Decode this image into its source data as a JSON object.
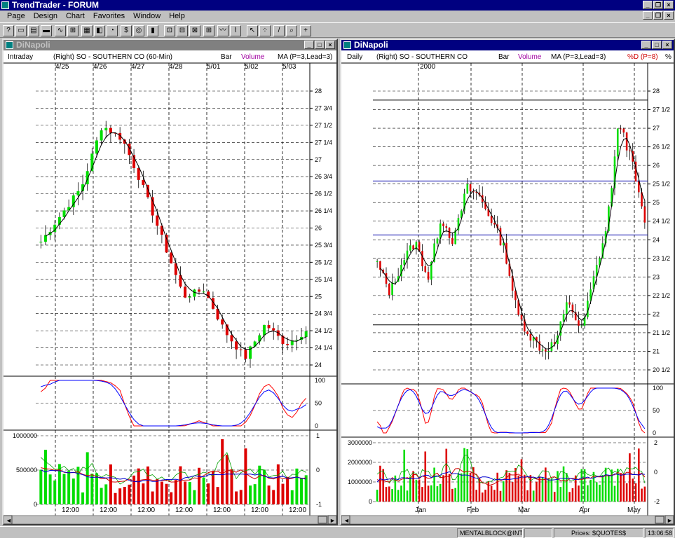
{
  "app": {
    "title": "TrendTrader - FORUM"
  },
  "menu": [
    "Page",
    "Design",
    "Chart",
    "Favorites",
    "Window",
    "Help"
  ],
  "toolbar_icons": [
    "help-icon",
    "page-icon",
    "chart-icon",
    "bar-icon",
    "wave-icon",
    "grid-icon",
    "table-icon",
    "palette-icon",
    "pie-icon",
    "dollar-icon",
    "target-icon",
    "indicator-icon",
    "layout-a-icon",
    "layout-b-icon",
    "layout-c-icon",
    "layout-d-icon",
    "oscillator-icon",
    "scope-icon",
    "pointer-icon",
    "select-icon",
    "pencil-icon",
    "zoom-icon",
    "crosshair-icon"
  ],
  "colors": {
    "up": "#00dd00",
    "down": "#dd0000",
    "ma": "#000000",
    "fast": "#0000ff",
    "slow": "#ff0000",
    "level": "#0000aa",
    "title_active": "#000080",
    "title_inactive": "#808080"
  },
  "left": {
    "window_title": "DiNapoli",
    "header": {
      "period": "Intraday",
      "symbol": "(Right)  SO - SOUTHERN CO (60-Min)",
      "bar": "Bar",
      "volume": "Volume",
      "ma": "MA (P=3,Lead=3)"
    },
    "date_labels": [
      "4/25",
      "4/26",
      "4/27",
      "4/28",
      "5/01",
      "5/02",
      "5/03"
    ],
    "time_labels": [
      "12:00",
      "12:00",
      "12:00",
      "12:00",
      "12:00",
      "12:00",
      "12:00"
    ],
    "price_ticks": [
      "28",
      "27 3/4",
      "27 1/2",
      "27 1/4",
      "27",
      "26 3/4",
      "26 1/2",
      "26 1/4",
      "26",
      "25 3/4",
      "25 1/2",
      "25 1/4",
      "25",
      "24 3/4",
      "24 1/2",
      "24 1/4",
      "24"
    ],
    "stoch_ticks": [
      "100",
      "50",
      "0"
    ],
    "volume_ticks": [
      "1000000",
      "500000",
      "0"
    ],
    "volume_right_ticks": [
      "1",
      "0",
      "-1"
    ]
  },
  "right": {
    "window_title": "DiNapoli",
    "header": {
      "period": "Daily",
      "symbol": "(Right)  SO - SOUTHERN CO",
      "bar": "Bar",
      "volume": "Volume",
      "ma": "MA (P=3,Lead=3)",
      "pctd": "%D (P=8)",
      "pct": "%"
    },
    "year_label": "2000",
    "month_labels": [
      "Jan",
      "Feb",
      "Mar",
      "Apr",
      "May"
    ],
    "price_ticks": [
      "28",
      "27 1/2",
      "27",
      "26 1/2",
      "26",
      "25 1/2",
      "25",
      "24 1/2",
      "24",
      "23 1/2",
      "23",
      "22 1/2",
      "22",
      "21 1/2",
      "21",
      "20 1/2"
    ],
    "stoch_ticks": [
      "100",
      "50",
      "0"
    ],
    "volume_ticks": [
      "3000000",
      "2000000",
      "1000000",
      "0"
    ],
    "volume_right_ticks": [
      "2",
      "0",
      "-2"
    ]
  },
  "status": {
    "user": "MENTALBLOCK@INTERI",
    "prices": "Prices: $QUOTES$",
    "time": "13:06:58"
  }
}
